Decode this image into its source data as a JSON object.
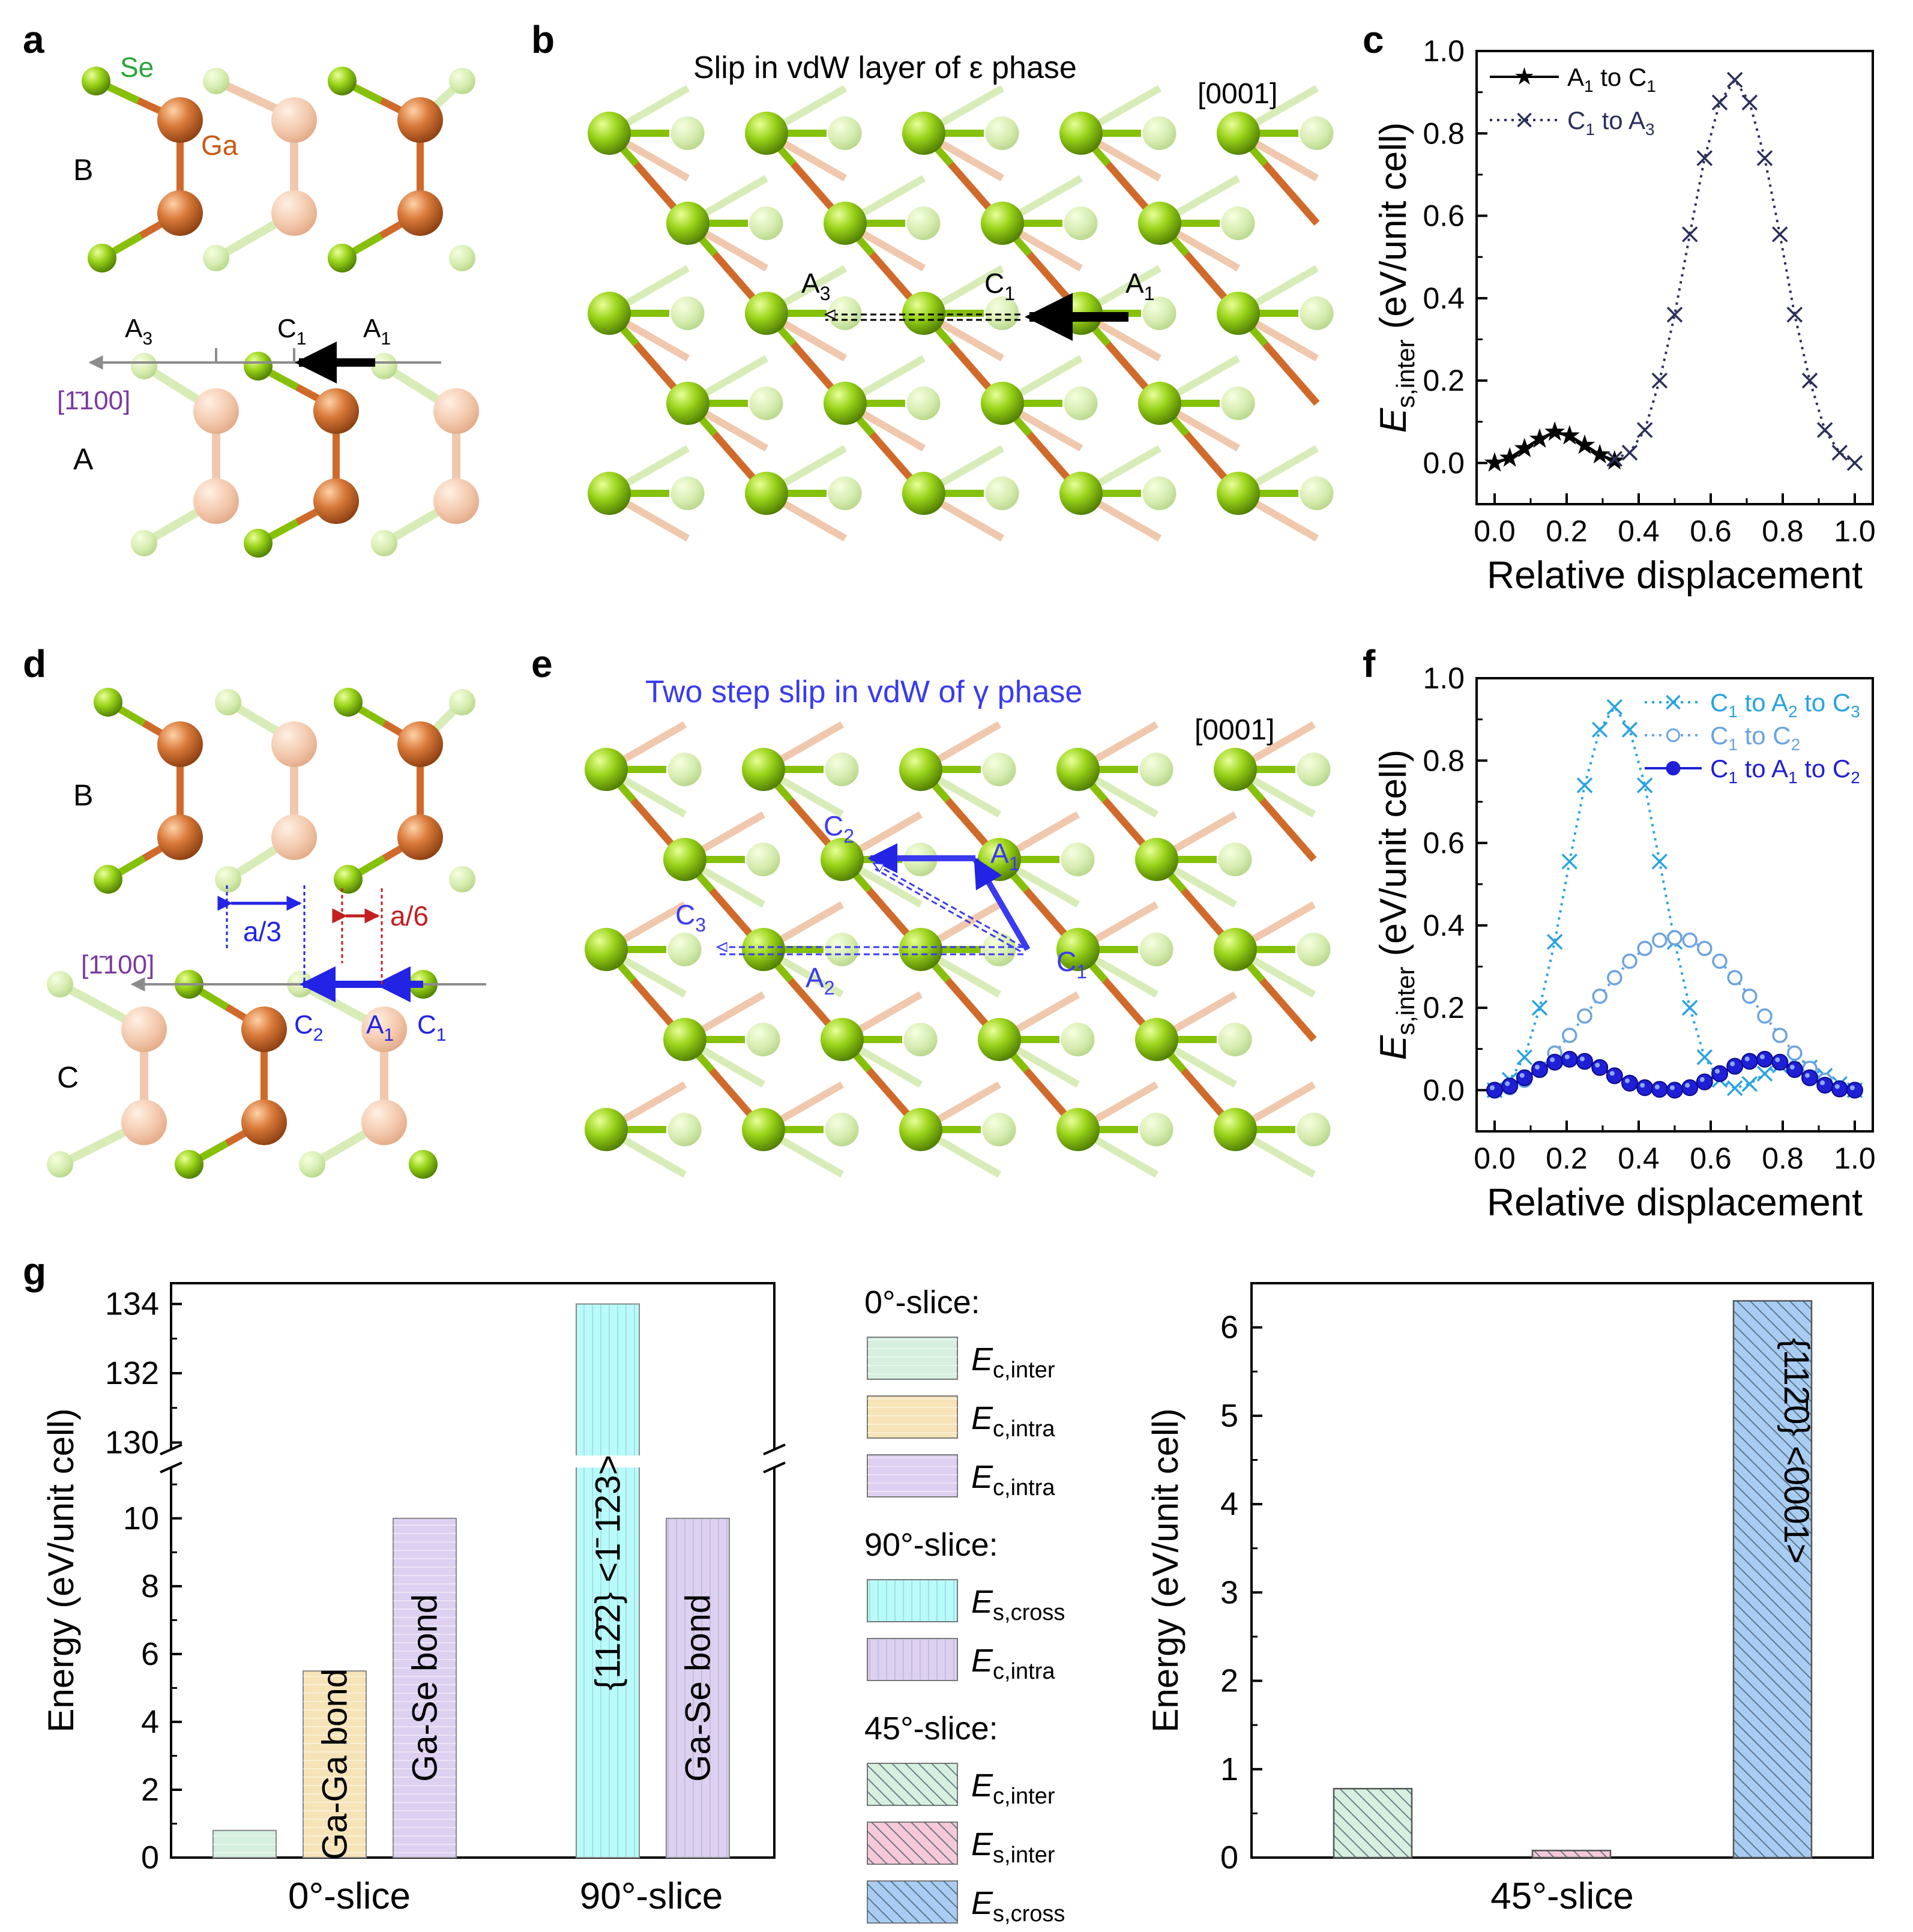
{
  "panel_letters": [
    "a",
    "b",
    "c",
    "d",
    "e",
    "f",
    "g"
  ],
  "panel_a": {
    "atom_labels": {
      "se": "Se",
      "ga": "Ga"
    },
    "layer_labels": [
      "B",
      "A"
    ],
    "site_labels": [
      "A",
      "3",
      "C",
      "1",
      "A",
      "1"
    ],
    "direction": "[1̄100]",
    "colors": {
      "se": "#86c10a",
      "ga": "#d06a2a",
      "direction": "#7a3aa0"
    }
  },
  "panel_b": {
    "title": "Slip in vdW layer of ε phase",
    "axis": "[0001]",
    "site_labels": [
      "A",
      "3",
      "C",
      "1",
      "A",
      "1"
    ]
  },
  "panel_d": {
    "layer_labels": [
      "B",
      "C"
    ],
    "dims": [
      "a/3",
      "a/6"
    ],
    "direction": "[1̄100]",
    "site_labels": [
      "C",
      "2",
      "A",
      "1",
      "C",
      "1"
    ],
    "colors": {
      "blue": "#2323e6",
      "red": "#c41e1e"
    }
  },
  "panel_e": {
    "title": "Two step slip in vdW of γ phase",
    "axis": "[0001]",
    "site_labels": [
      "C",
      "2",
      "A",
      "1",
      "C",
      "3",
      "C",
      "1",
      "A",
      "2"
    ],
    "color": "#3a3af0"
  },
  "chart_data": [
    {
      "panel": "c",
      "type": "line",
      "xlabel": "Relative displacement",
      "ylabel": "E s,inter (eV/unit cell)",
      "xlim": [
        -0.05,
        1.05
      ],
      "ylim": [
        -0.1,
        1.0
      ],
      "xticks": [
        "0.0",
        "0.2",
        "0.4",
        "0.6",
        "0.8",
        "1.0"
      ],
      "yticks": [
        "0.0",
        "0.2",
        "0.4",
        "0.6",
        "0.8",
        "1.0"
      ],
      "legend": "top-left",
      "series": [
        {
          "name": "A1 to C1",
          "label_parts": [
            "A",
            "1",
            " to C",
            "1"
          ],
          "marker": "star",
          "line": "solid",
          "color": "#000000",
          "x": [
            0.0,
            0.042,
            0.083,
            0.125,
            0.167,
            0.208,
            0.25,
            0.292,
            0.333
          ],
          "y": [
            0.0,
            0.012,
            0.035,
            0.058,
            0.075,
            0.066,
            0.043,
            0.02,
            0.005
          ]
        },
        {
          "name": "C1 to A3",
          "label_parts": [
            "C",
            "1",
            " to A",
            "3"
          ],
          "marker": "x",
          "line": "dotted",
          "color": "#2b2f5a",
          "x": [
            0.333,
            0.375,
            0.417,
            0.458,
            0.5,
            0.542,
            0.583,
            0.625,
            0.667,
            0.708,
            0.75,
            0.792,
            0.833,
            0.875,
            0.917,
            0.958,
            1.0
          ],
          "y": [
            0.01,
            0.025,
            0.08,
            0.2,
            0.36,
            0.555,
            0.74,
            0.875,
            0.93,
            0.875,
            0.74,
            0.555,
            0.36,
            0.2,
            0.08,
            0.025,
            0.0
          ]
        }
      ]
    },
    {
      "panel": "f",
      "type": "line",
      "xlabel": "Relative displacement",
      "ylabel": "E s,inter (eV/unit cell)",
      "xlim": [
        -0.05,
        1.05
      ],
      "ylim": [
        -0.1,
        1.0
      ],
      "xticks": [
        "0.0",
        "0.2",
        "0.4",
        "0.6",
        "0.8",
        "1.0"
      ],
      "yticks": [
        "0.0",
        "0.2",
        "0.4",
        "0.6",
        "0.8",
        "1.0"
      ],
      "legend": "top-right",
      "series": [
        {
          "name": "C1 to A2 to C3",
          "label_parts": [
            "C",
            "1",
            " to A",
            "2",
            " to C",
            "3"
          ],
          "marker": "x",
          "line": "dotted",
          "color": "#29a3e0",
          "x": [
            0.0,
            0.042,
            0.083,
            0.125,
            0.167,
            0.208,
            0.25,
            0.292,
            0.333,
            0.375,
            0.417,
            0.458,
            0.5,
            0.542,
            0.583,
            0.625,
            0.667,
            0.708,
            0.75,
            0.792,
            0.833,
            0.875,
            0.917,
            0.958,
            1.0
          ],
          "y": [
            0.0,
            0.025,
            0.08,
            0.2,
            0.36,
            0.555,
            0.74,
            0.875,
            0.93,
            0.875,
            0.74,
            0.555,
            0.36,
            0.2,
            0.08,
            0.025,
            0.005,
            0.015,
            0.04,
            0.06,
            0.07,
            0.055,
            0.035,
            0.015,
            0.0
          ]
        },
        {
          "name": "C1 to C2",
          "label_parts": [
            "C",
            "1",
            " to C",
            "2"
          ],
          "marker": "circle-open",
          "line": "dotted",
          "color": "#6ba3e0",
          "x": [
            0.0,
            0.042,
            0.083,
            0.125,
            0.167,
            0.208,
            0.25,
            0.292,
            0.333,
            0.375,
            0.417,
            0.458,
            0.5,
            0.542,
            0.583,
            0.625,
            0.667,
            0.708,
            0.75,
            0.792,
            0.833,
            0.875,
            0.917,
            0.958,
            1.0
          ],
          "y": [
            0.0,
            0.006,
            0.024,
            0.053,
            0.09,
            0.133,
            0.18,
            0.228,
            0.273,
            0.313,
            0.344,
            0.364,
            0.37,
            0.364,
            0.344,
            0.313,
            0.273,
            0.228,
            0.18,
            0.133,
            0.09,
            0.053,
            0.024,
            0.006,
            0.0
          ]
        },
        {
          "name": "C1 to A1 to C2",
          "label_parts": [
            "C",
            "1",
            " to A",
            "1",
            " to C",
            "2"
          ],
          "marker": "circle-filled",
          "line": "solid",
          "color": "#1f1fd6",
          "x": [
            0.0,
            0.042,
            0.083,
            0.125,
            0.167,
            0.208,
            0.25,
            0.292,
            0.333,
            0.375,
            0.417,
            0.458,
            0.5,
            0.542,
            0.583,
            0.625,
            0.667,
            0.708,
            0.75,
            0.792,
            0.833,
            0.875,
            0.917,
            0.958,
            1.0
          ],
          "y": [
            0.0,
            0.01,
            0.03,
            0.05,
            0.068,
            0.075,
            0.07,
            0.055,
            0.035,
            0.017,
            0.006,
            0.002,
            0.0,
            0.006,
            0.02,
            0.04,
            0.058,
            0.07,
            0.075,
            0.068,
            0.05,
            0.03,
            0.012,
            0.003,
            0.0
          ]
        }
      ]
    },
    {
      "panel": "g-left",
      "type": "bar",
      "ylabel": "Energy (eV/unit cell)",
      "categories": [
        "0°-slice",
        "90°-slice"
      ],
      "ylim_lower": [
        0,
        11.5
      ],
      "ylim_upper": [
        129.8,
        134.6
      ],
      "yticks": [
        "0",
        "2",
        "4",
        "6",
        "8",
        "10",
        "130",
        "132",
        "134"
      ],
      "bars": [
        {
          "group": "0°-slice",
          "value": 0.8,
          "label": "",
          "fill": "#d6efdf",
          "pattern": "hlines"
        },
        {
          "group": "0°-slice",
          "value": 5.5,
          "label": "Ga-Ga bond",
          "fill": "#f6e4b8",
          "pattern": "hlines"
        },
        {
          "group": "0°-slice",
          "value": 10.0,
          "label": "Ga-Se bond",
          "fill": "#ddd0f0",
          "pattern": "hlines"
        },
        {
          "group": "90°-slice",
          "value": 134.0,
          "label": "{112̄2} <1̄ 1̄23>",
          "fill": "#b8fbfb",
          "pattern": "vlines"
        },
        {
          "group": "90°-slice",
          "value": 10.0,
          "label": "Ga-Se bond",
          "fill": "#ddd0f0",
          "pattern": "vlines"
        }
      ]
    },
    {
      "panel": "g-right",
      "type": "bar",
      "ylabel": "Energy (eV/unit cell)",
      "categories": [
        "45°-slice"
      ],
      "ylim": [
        0,
        6.5
      ],
      "yticks": [
        "0",
        "1",
        "2",
        "3",
        "4",
        "5",
        "6"
      ],
      "bars": [
        {
          "value": 0.78,
          "label": "",
          "fill": "#d6efdf",
          "pattern": "diag"
        },
        {
          "value": 0.08,
          "label": "",
          "fill": "#f5c9d8",
          "pattern": "diag"
        },
        {
          "value": 6.3,
          "label": "{112̄0} <0001>",
          "fill": "#a9cdf2",
          "pattern": "diag"
        }
      ]
    }
  ],
  "legend_g": {
    "groups": [
      {
        "title": "0°-slice:",
        "items": [
          {
            "sym": "E",
            "sub": "c,inter",
            "fill": "#d6efdf",
            "pattern": "hlines"
          },
          {
            "sym": "E",
            "sub": "c,intra",
            "fill": "#f6e4b8",
            "pattern": "hlines"
          },
          {
            "sym": "E",
            "sub": "c,intra",
            "fill": "#ddd0f0",
            "pattern": "hlines"
          }
        ]
      },
      {
        "title": "90°-slice:",
        "items": [
          {
            "sym": "E",
            "sub": "s,cross",
            "fill": "#b8fbfb",
            "pattern": "vlines"
          },
          {
            "sym": "E",
            "sub": "c,intra",
            "fill": "#ddd0f0",
            "pattern": "vlines"
          }
        ]
      },
      {
        "title": "45°-slice:",
        "items": [
          {
            "sym": "E",
            "sub": "c,inter",
            "fill": "#d6efdf",
            "pattern": "diag"
          },
          {
            "sym": "E",
            "sub": "s,inter",
            "fill": "#f5c9d8",
            "pattern": "diag"
          },
          {
            "sym": "E",
            "sub": "s,cross",
            "fill": "#a9cdf2",
            "pattern": "diag"
          }
        ]
      }
    ]
  }
}
